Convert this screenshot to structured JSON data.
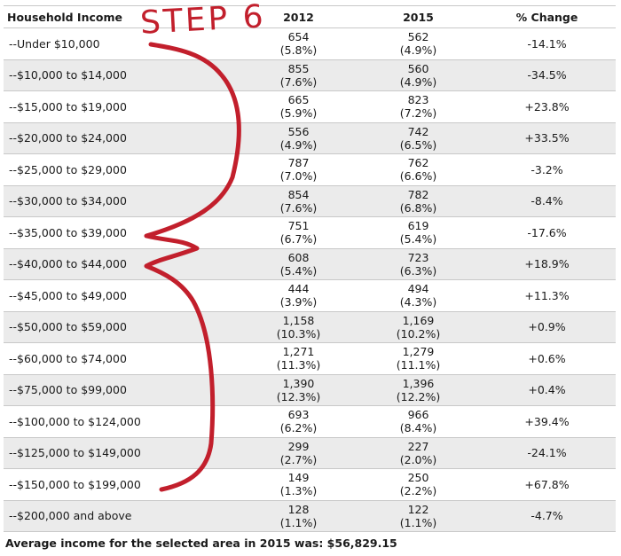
{
  "table": {
    "headers": {
      "income": "Household Income",
      "y2012": "2012",
      "y2015": "2015",
      "change": "% Change"
    },
    "rows": [
      {
        "label": "--Under $10,000",
        "v2012": "654",
        "p2012": "(5.8%)",
        "v2015": "562",
        "p2015": "(4.9%)",
        "change": "-14.1%"
      },
      {
        "label": "--$10,000 to $14,000",
        "v2012": "855",
        "p2012": "(7.6%)",
        "v2015": "560",
        "p2015": "(4.9%)",
        "change": "-34.5%"
      },
      {
        "label": "--$15,000 to $19,000",
        "v2012": "665",
        "p2012": "(5.9%)",
        "v2015": "823",
        "p2015": "(7.2%)",
        "change": "+23.8%"
      },
      {
        "label": "--$20,000 to $24,000",
        "v2012": "556",
        "p2012": "(4.9%)",
        "v2015": "742",
        "p2015": "(6.5%)",
        "change": "+33.5%"
      },
      {
        "label": "--$25,000 to $29,000",
        "v2012": "787",
        "p2012": "(7.0%)",
        "v2015": "762",
        "p2015": "(6.6%)",
        "change": "-3.2%"
      },
      {
        "label": "--$30,000 to $34,000",
        "v2012": "854",
        "p2012": "(7.6%)",
        "v2015": "782",
        "p2015": "(6.8%)",
        "change": "-8.4%"
      },
      {
        "label": "--$35,000 to $39,000",
        "v2012": "751",
        "p2012": "(6.7%)",
        "v2015": "619",
        "p2015": "(5.4%)",
        "change": "-17.6%"
      },
      {
        "label": "--$40,000 to $44,000",
        "v2012": "608",
        "p2012": "(5.4%)",
        "v2015": "723",
        "p2015": "(6.3%)",
        "change": "+18.9%"
      },
      {
        "label": "--$45,000 to $49,000",
        "v2012": "444",
        "p2012": "(3.9%)",
        "v2015": "494",
        "p2015": "(4.3%)",
        "change": "+11.3%"
      },
      {
        "label": "--$50,000 to $59,000",
        "v2012": "1,158",
        "p2012": "(10.3%)",
        "v2015": "1,169",
        "p2015": "(10.2%)",
        "change": "+0.9%"
      },
      {
        "label": "--$60,000 to $74,000",
        "v2012": "1,271",
        "p2012": "(11.3%)",
        "v2015": "1,279",
        "p2015": "(11.1%)",
        "change": "+0.6%"
      },
      {
        "label": "--$75,000 to $99,000",
        "v2012": "1,390",
        "p2012": "(12.3%)",
        "v2015": "1,396",
        "p2015": "(12.2%)",
        "change": "+0.4%"
      },
      {
        "label": "--$100,000 to $124,000",
        "v2012": "693",
        "p2012": "(6.2%)",
        "v2015": "966",
        "p2015": "(8.4%)",
        "change": "+39.4%"
      },
      {
        "label": "--$125,000 to $149,000",
        "v2012": "299",
        "p2012": "(2.7%)",
        "v2015": "227",
        "p2015": "(2.0%)",
        "change": "-24.1%"
      },
      {
        "label": "--$150,000 to $199,000",
        "v2012": "149",
        "p2012": "(1.3%)",
        "v2015": "250",
        "p2015": "(2.2%)",
        "change": "+67.8%"
      },
      {
        "label": "--$200,000 and above",
        "v2012": "128",
        "p2012": "(1.1%)",
        "v2015": "122",
        "p2015": "(1.1%)",
        "change": "-4.7%"
      }
    ]
  },
  "footer": "Average income for the selected area in 2015 was: $56,829.15",
  "annotation": {
    "text": "STEP 6",
    "color": "#c21f2c"
  }
}
